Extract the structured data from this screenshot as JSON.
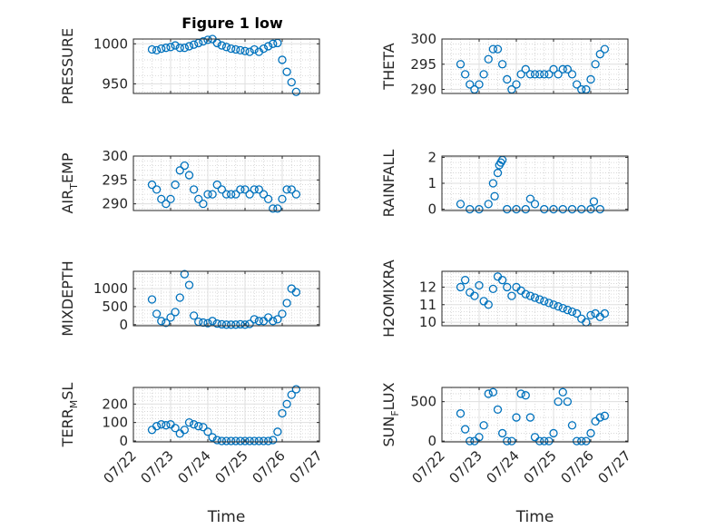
{
  "figure_title": "Figure 1 low",
  "chart_data": [
    {
      "type": "scatter",
      "id": "pressure",
      "title": "Figure 1 low",
      "ylabel": "PRESSURE",
      "ylim": [
        938,
        1006
      ],
      "yticks": [
        "950",
        "1000"
      ],
      "ytick_values": [
        950,
        1000
      ],
      "xlabel": "",
      "xlim": [
        "07/22",
        "07/27"
      ],
      "grid": true,
      "x": [
        "07/22 12:00",
        "07/22 15:00",
        "07/22 18:00",
        "07/22 21:00",
        "07/23 00:00",
        "07/23 03:00",
        "07/23 06:00",
        "07/23 09:00",
        "07/23 12:00",
        "07/23 15:00",
        "07/23 18:00",
        "07/23 21:00",
        "07/24 00:00",
        "07/24 03:00",
        "07/24 06:00",
        "07/24 09:00",
        "07/24 12:00",
        "07/24 15:00",
        "07/24 18:00",
        "07/24 21:00",
        "07/25 00:00",
        "07/25 03:00",
        "07/25 06:00",
        "07/25 09:00",
        "07/25 12:00",
        "07/25 15:00",
        "07/25 18:00",
        "07/25 21:00",
        "07/26 00:00",
        "07/26 03:00",
        "07/26 06:00",
        "07/26 09:00"
      ],
      "values": [
        993,
        992,
        994,
        995,
        996,
        998,
        995,
        995,
        997,
        999,
        1001,
        1003,
        1005,
        1006,
        1001,
        998,
        996,
        994,
        993,
        992,
        991,
        990,
        993,
        990,
        994,
        997,
        1000,
        1001,
        980,
        965,
        952,
        940
      ]
    },
    {
      "type": "scatter",
      "id": "theta",
      "ylabel": "THETA",
      "ylim": [
        289.2,
        300
      ],
      "yticks": [
        "290",
        "295",
        "300"
      ],
      "ytick_values": [
        290,
        295,
        300
      ],
      "xlabel": "",
      "xlim": [
        "07/22",
        "07/27"
      ],
      "grid": true,
      "x": [
        "07/22 12:00",
        "07/22 15:00",
        "07/22 18:00",
        "07/22 21:00",
        "07/23 00:00",
        "07/23 03:00",
        "07/23 06:00",
        "07/23 09:00",
        "07/23 12:00",
        "07/23 15:00",
        "07/23 18:00",
        "07/23 21:00",
        "07/24 00:00",
        "07/24 03:00",
        "07/24 06:00",
        "07/24 09:00",
        "07/24 12:00",
        "07/24 15:00",
        "07/24 18:00",
        "07/24 21:00",
        "07/25 00:00",
        "07/25 03:00",
        "07/25 06:00",
        "07/25 09:00",
        "07/25 12:00",
        "07/25 15:00",
        "07/25 18:00",
        "07/25 21:00",
        "07/26 00:00",
        "07/26 03:00",
        "07/26 06:00",
        "07/26 09:00"
      ],
      "values": [
        295,
        293,
        291,
        290,
        291,
        293,
        296,
        298,
        298,
        295,
        292,
        290,
        291,
        293,
        294,
        293,
        293,
        293,
        293,
        293,
        294,
        293,
        294,
        294,
        293,
        291,
        290,
        290,
        292,
        295,
        297,
        298
      ]
    },
    {
      "type": "scatter",
      "id": "air_temp",
      "ylabel": "AIR",
      "ylabel_sub": "T",
      "ylabel_tail": "EMP",
      "ylim": [
        288.6,
        300
      ],
      "yticks": [
        "290",
        "295",
        "300"
      ],
      "ytick_values": [
        290,
        295,
        300
      ],
      "xlabel": "",
      "xlim": [
        "07/22",
        "07/27"
      ],
      "grid": true,
      "x": [
        "07/22 12:00",
        "07/22 15:00",
        "07/22 18:00",
        "07/22 21:00",
        "07/23 00:00",
        "07/23 03:00",
        "07/23 06:00",
        "07/23 09:00",
        "07/23 12:00",
        "07/23 15:00",
        "07/23 18:00",
        "07/23 21:00",
        "07/24 00:00",
        "07/24 03:00",
        "07/24 06:00",
        "07/24 09:00",
        "07/24 12:00",
        "07/24 15:00",
        "07/24 18:00",
        "07/24 21:00",
        "07/25 00:00",
        "07/25 03:00",
        "07/25 06:00",
        "07/25 09:00",
        "07/25 12:00",
        "07/25 15:00",
        "07/25 18:00",
        "07/25 21:00",
        "07/26 00:00",
        "07/26 03:00",
        "07/26 06:00",
        "07/26 09:00"
      ],
      "values": [
        294,
        293,
        291,
        290,
        291,
        294,
        297,
        298,
        296,
        293,
        291,
        290,
        292,
        292,
        294,
        293,
        292,
        292,
        292,
        293,
        293,
        292,
        293,
        293,
        292,
        291,
        289,
        289,
        291,
        293,
        293,
        292
      ]
    },
    {
      "type": "scatter",
      "id": "rainfall",
      "ylabel": "RAINFALL",
      "ylim": [
        -0.05,
        2.05
      ],
      "yticks": [
        "0",
        "1",
        "2"
      ],
      "ytick_values": [
        0,
        1,
        2
      ],
      "xlabel": "",
      "xlim": [
        "07/22",
        "07/27"
      ],
      "grid": true,
      "x": [
        "07/22 12:00",
        "07/22 18:00",
        "07/23 00:00",
        "07/23 06:00",
        "07/23 09:00",
        "07/23 10:00",
        "07/23 12:00",
        "07/23 13:00",
        "07/23 14:00",
        "07/23 15:00",
        "07/23 18:00",
        "07/24 00:00",
        "07/24 06:00",
        "07/24 09:00",
        "07/24 12:00",
        "07/24 18:00",
        "07/25 00:00",
        "07/25 06:00",
        "07/25 12:00",
        "07/25 18:00",
        "07/26 00:00",
        "07/26 02:00",
        "07/26 06:00"
      ],
      "values": [
        0.2,
        0,
        0,
        0.2,
        1.0,
        0.5,
        1.4,
        1.7,
        1.8,
        1.9,
        0,
        0,
        0,
        0.4,
        0.2,
        0,
        0,
        0,
        0,
        0,
        0,
        0.3,
        0
      ]
    },
    {
      "type": "scatter",
      "id": "mixdepth",
      "ylabel": "MIXDEPTH",
      "ylim": [
        -30,
        1480
      ],
      "yticks": [
        "0",
        "500",
        "1000"
      ],
      "ytick_values": [
        0,
        500,
        1000
      ],
      "xlabel": "",
      "xlim": [
        "07/22",
        "07/27"
      ],
      "grid": true,
      "x": [
        "07/22 12:00",
        "07/22 15:00",
        "07/22 18:00",
        "07/22 21:00",
        "07/23 00:00",
        "07/23 03:00",
        "07/23 06:00",
        "07/23 09:00",
        "07/23 12:00",
        "07/23 15:00",
        "07/23 18:00",
        "07/23 21:00",
        "07/24 00:00",
        "07/24 03:00",
        "07/24 06:00",
        "07/24 09:00",
        "07/24 12:00",
        "07/24 15:00",
        "07/24 18:00",
        "07/24 21:00",
        "07/25 00:00",
        "07/25 03:00",
        "07/25 06:00",
        "07/25 09:00",
        "07/25 12:00",
        "07/25 15:00",
        "07/25 18:00",
        "07/25 21:00",
        "07/26 00:00",
        "07/26 03:00",
        "07/26 06:00",
        "07/26 09:00"
      ],
      "values": [
        700,
        300,
        100,
        50,
        200,
        350,
        750,
        1400,
        1100,
        250,
        80,
        60,
        40,
        100,
        30,
        10,
        0,
        0,
        0,
        10,
        0,
        20,
        150,
        100,
        100,
        200,
        100,
        150,
        300,
        600,
        1000,
        900
      ]
    },
    {
      "type": "scatter",
      "id": "h2omixra",
      "ylabel": "H2OMIXRA",
      "ylim": [
        9.8,
        12.9
      ],
      "yticks": [
        "10",
        "11",
        "12"
      ],
      "ytick_values": [
        10,
        11,
        12
      ],
      "xlabel": "",
      "xlim": [
        "07/22",
        "07/27"
      ],
      "grid": true,
      "x": [
        "07/22 12:00",
        "07/22 15:00",
        "07/22 18:00",
        "07/22 21:00",
        "07/23 00:00",
        "07/23 03:00",
        "07/23 06:00",
        "07/23 09:00",
        "07/23 12:00",
        "07/23 15:00",
        "07/23 18:00",
        "07/23 21:00",
        "07/24 00:00",
        "07/24 03:00",
        "07/24 06:00",
        "07/24 09:00",
        "07/24 12:00",
        "07/24 15:00",
        "07/24 18:00",
        "07/24 21:00",
        "07/25 00:00",
        "07/25 03:00",
        "07/25 06:00",
        "07/25 09:00",
        "07/25 12:00",
        "07/25 15:00",
        "07/25 18:00",
        "07/25 21:00",
        "07/26 00:00",
        "07/26 03:00",
        "07/26 06:00",
        "07/26 09:00"
      ],
      "values": [
        12.0,
        12.4,
        11.7,
        11.5,
        12.1,
        11.2,
        11.0,
        11.9,
        12.6,
        12.4,
        12.0,
        11.5,
        12.0,
        11.8,
        11.6,
        11.5,
        11.4,
        11.3,
        11.2,
        11.1,
        11.0,
        10.9,
        10.8,
        10.7,
        10.6,
        10.5,
        10.2,
        10.0,
        10.4,
        10.5,
        10.3,
        10.5
      ]
    },
    {
      "type": "scatter",
      "id": "terr_msl",
      "ylabel": "TERR",
      "ylabel_sub": "M",
      "ylabel_tail": "SL",
      "ylim": [
        -5,
        290
      ],
      "yticks": [
        "0",
        "100",
        "200"
      ],
      "ytick_values": [
        0,
        100,
        200
      ],
      "xlabel": "Time",
      "xlim": [
        "07/22",
        "07/27"
      ],
      "xticks": [
        "07/22",
        "07/23",
        "07/24",
        "07/25",
        "07/26",
        "07/27"
      ],
      "grid": true,
      "x": [
        "07/22 12:00",
        "07/22 15:00",
        "07/22 18:00",
        "07/22 21:00",
        "07/23 00:00",
        "07/23 03:00",
        "07/23 06:00",
        "07/23 09:00",
        "07/23 12:00",
        "07/23 15:00",
        "07/23 18:00",
        "07/23 21:00",
        "07/24 00:00",
        "07/24 03:00",
        "07/24 06:00",
        "07/24 09:00",
        "07/24 12:00",
        "07/24 15:00",
        "07/24 18:00",
        "07/24 21:00",
        "07/25 00:00",
        "07/25 03:00",
        "07/25 06:00",
        "07/25 09:00",
        "07/25 12:00",
        "07/25 15:00",
        "07/25 18:00",
        "07/25 21:00",
        "07/26 00:00",
        "07/26 03:00",
        "07/26 06:00",
        "07/26 09:00"
      ],
      "values": [
        60,
        80,
        90,
        85,
        90,
        70,
        40,
        60,
        100,
        90,
        80,
        75,
        50,
        20,
        5,
        0,
        0,
        0,
        0,
        0,
        0,
        0,
        0,
        0,
        0,
        0,
        5,
        50,
        150,
        200,
        250,
        280
      ]
    },
    {
      "type": "scatter",
      "id": "sun_flux",
      "ylabel": "SUN",
      "ylabel_sub": "F",
      "ylabel_tail": "LUX",
      "ylim": [
        -10,
        680
      ],
      "yticks": [
        "0",
        "500"
      ],
      "ytick_values": [
        0,
        500
      ],
      "xlabel": "Time",
      "xlim": [
        "07/22",
        "07/27"
      ],
      "xticks": [
        "07/22",
        "07/23",
        "07/24",
        "07/25",
        "07/26",
        "07/27"
      ],
      "grid": true,
      "x": [
        "07/22 12:00",
        "07/22 15:00",
        "07/22 18:00",
        "07/22 21:00",
        "07/23 00:00",
        "07/23 03:00",
        "07/23 06:00",
        "07/23 09:00",
        "07/23 12:00",
        "07/23 15:00",
        "07/23 18:00",
        "07/23 21:00",
        "07/24 00:00",
        "07/24 03:00",
        "07/24 06:00",
        "07/24 09:00",
        "07/24 12:00",
        "07/24 15:00",
        "07/24 18:00",
        "07/24 21:00",
        "07/25 00:00",
        "07/25 03:00",
        "07/25 06:00",
        "07/25 09:00",
        "07/25 12:00",
        "07/25 15:00",
        "07/25 18:00",
        "07/25 21:00",
        "07/26 00:00",
        "07/26 03:00",
        "07/26 06:00",
        "07/26 09:00"
      ],
      "values": [
        350,
        150,
        0,
        0,
        50,
        200,
        600,
        620,
        400,
        100,
        0,
        0,
        300,
        600,
        580,
        300,
        50,
        0,
        0,
        0,
        100,
        500,
        620,
        500,
        200,
        0,
        0,
        0,
        100,
        250,
        300,
        320
      ]
    }
  ]
}
